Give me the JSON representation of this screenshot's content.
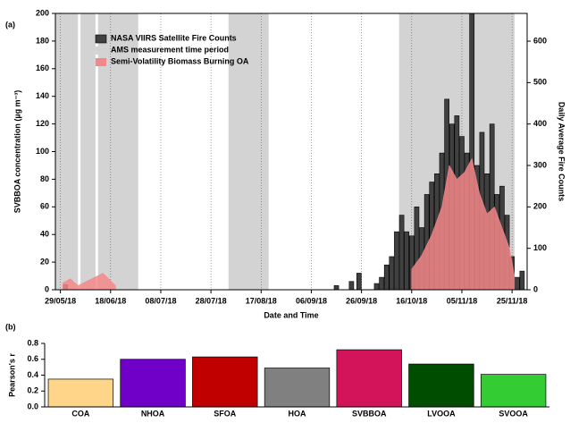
{
  "chart_data": [
    {
      "type": "combo",
      "panel_label": "(a)",
      "xlabel": "Date and Time",
      "ylabel": "SVBBOA concentration (µg m⁻³)",
      "y2label": "Daily Average Fire Counts",
      "xlim": [
        "27/05/18",
        "01/12/18"
      ],
      "xticks": [
        "29/05/18",
        "18/06/18",
        "08/07/18",
        "28/07/18",
        "17/08/18",
        "06/09/18",
        "26/09/18",
        "16/10/18",
        "05/11/18",
        "25/11/18"
      ],
      "xgrid": true,
      "ylim": [
        0,
        200
      ],
      "yticks": [
        0,
        20,
        40,
        60,
        80,
        100,
        120,
        140,
        160,
        180,
        200
      ],
      "y2lim": [
        0,
        667
      ],
      "y2ticks": [
        0,
        100,
        200,
        300,
        400,
        500,
        600
      ],
      "legend": "upper left",
      "series": [
        {
          "name": "NASA VIIRS Satellite Fire Counts",
          "kind": "bar",
          "axis": "y2",
          "color": "#404040",
          "x": [
            "31/05/18",
            "16/09/18",
            "22/09/18",
            "25/09/18",
            "02/10/18",
            "04/10/18",
            "06/10/18",
            "08/10/18",
            "10/10/18",
            "12/10/18",
            "14/10/18",
            "16/10/18",
            "18/10/18",
            "20/10/18",
            "22/10/18",
            "24/10/18",
            "26/10/18",
            "28/10/18",
            "30/10/18",
            "01/11/18",
            "03/11/18",
            "05/11/18",
            "07/11/18",
            "09/11/18",
            "11/11/18",
            "13/11/18",
            "15/11/18",
            "17/11/18",
            "19/11/18",
            "21/11/18",
            "23/11/18",
            "25/11/18",
            "27/11/18",
            "29/11/18"
          ],
          "values": [
            12,
            10,
            20,
            40,
            15,
            30,
            60,
            80,
            140,
            180,
            140,
            130,
            200,
            150,
            230,
            260,
            280,
            330,
            460,
            400,
            420,
            370,
            330,
            667,
            300,
            380,
            280,
            400,
            230,
            250,
            180,
            80,
            30,
            45
          ]
        },
        {
          "name": "AMS measurement time period",
          "kind": "span",
          "color": "#d3d3d3",
          "periods": [
            [
              "27/05/18",
              "05/06/18"
            ],
            [
              "06/06/18",
              "12/06/18"
            ],
            [
              "13/06/18",
              "29/06/18"
            ],
            [
              "04/08/18",
              "20/08/18"
            ],
            [
              "11/10/18",
              "26/11/18"
            ]
          ]
        },
        {
          "name": "Semi-Volatility Biomass Burning OA",
          "kind": "area",
          "color": "#f4878a",
          "x": [
            "30/05/18",
            "02/06/18",
            "05/06/18",
            "15/06/18",
            "20/06/18",
            "12/10/18",
            "16/10/18",
            "20/10/18",
            "24/10/18",
            "28/10/18",
            "31/10/18",
            "03/11/18",
            "06/11/18",
            "09/11/18",
            "12/11/18",
            "15/11/18",
            "18/11/18",
            "21/11/18",
            "24/11/18",
            "26/11/18"
          ],
          "values": [
            5,
            8,
            3,
            12,
            3,
            null,
            15,
            25,
            40,
            60,
            90,
            80,
            85,
            95,
            70,
            55,
            60,
            45,
            30,
            10
          ]
        }
      ]
    },
    {
      "type": "bar",
      "panel_label": "(b)",
      "ylabel": "Pearson's r",
      "categories": [
        "COA",
        "NHOA",
        "SFOA",
        "HOA",
        "SVBBOA",
        "LVOOA",
        "SVOOA"
      ],
      "values": [
        0.35,
        0.6,
        0.63,
        0.49,
        0.72,
        0.54,
        0.41
      ],
      "colors": [
        "#ffd58a",
        "#7000c8",
        "#c00000",
        "#808080",
        "#d4145a",
        "#004d00",
        "#33cc33"
      ],
      "ylim": [
        0,
        0.8
      ],
      "yticks": [
        {
          "value": 0,
          "label": "0.0"
        },
        0.2,
        0.4,
        0.6,
        0.8
      ]
    }
  ]
}
